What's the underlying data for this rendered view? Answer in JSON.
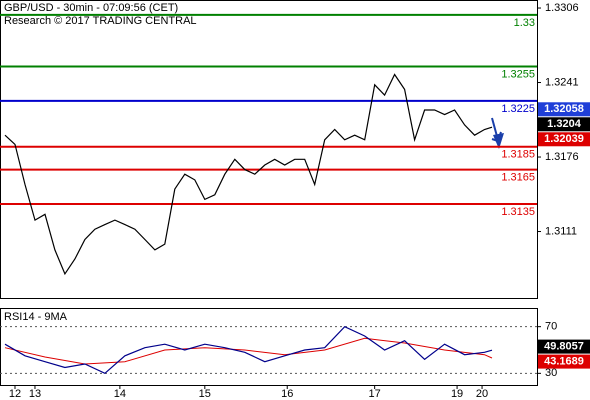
{
  "header": {
    "title": "GBP/USD - 30min - 07:09:56 (CET)",
    "source": "Research © 2017 TRADING CENTRAL"
  },
  "chart_data": [
    {
      "type": "line",
      "color": "#000000",
      "x": [
        0,
        4,
        8,
        12,
        16,
        20,
        24,
        28,
        32,
        36,
        40,
        44,
        48,
        52,
        56,
        60,
        64,
        68,
        72,
        76,
        80,
        84,
        88,
        92,
        96,
        100,
        104,
        108,
        112,
        116,
        120,
        124,
        128,
        132,
        136,
        140,
        144,
        148,
        152,
        156,
        160,
        164,
        168,
        172,
        176,
        180,
        184,
        188,
        192,
        195
      ],
      "values": [
        1.3195,
        1.3187,
        1.3152,
        1.3121,
        1.3126,
        1.3095,
        1.3074,
        1.3087,
        1.3104,
        1.3113,
        1.3117,
        1.3121,
        1.3117,
        1.3113,
        1.3104,
        1.3095,
        1.31,
        1.3148,
        1.3161,
        1.3156,
        1.3139,
        1.3143,
        1.3161,
        1.3174,
        1.3165,
        1.3161,
        1.3169,
        1.3174,
        1.3169,
        1.3174,
        1.3174,
        1.3152,
        1.3191,
        1.32,
        1.3191,
        1.3195,
        1.3191,
        1.3239,
        1.323,
        1.3248,
        1.3235,
        1.3191,
        1.3217,
        1.3217,
        1.3213,
        1.3217,
        1.3204,
        1.3195,
        1.32,
        1.3202
      ],
      "xlim": [
        -2,
        213
      ],
      "xticks": [
        {
          "value": 4,
          "label": "12"
        },
        {
          "value": 12,
          "label": "13"
        },
        {
          "value": 46,
          "label": "14"
        },
        {
          "value": 80,
          "label": "15"
        },
        {
          "value": 113,
          "label": "16"
        },
        {
          "value": 148,
          "label": "17"
        },
        {
          "value": 181,
          "label": "19"
        },
        {
          "value": 191,
          "label": "20"
        }
      ],
      "ylim": [
        1.3053,
        1.3313
      ],
      "yticks": [
        1.3111,
        1.3176,
        1.3241,
        1.3306
      ],
      "levels": [
        {
          "value": 1.33,
          "color": "#008000"
        },
        {
          "value": 1.3255,
          "color": "#008000"
        },
        {
          "value": 1.3225,
          "color": "#0000cc"
        },
        {
          "value": 1.3185,
          "color": "#dd0000"
        },
        {
          "value": 1.3165,
          "color": "#dd0000"
        },
        {
          "value": 1.3135,
          "color": "#dd0000"
        }
      ],
      "price_tags": [
        {
          "value": 1.32058,
          "color": "#1f3fd8"
        },
        {
          "value": 1.3204,
          "color": "#000000"
        },
        {
          "value": 1.32039,
          "color": "#dd0000"
        }
      ]
    },
    {
      "type": "line",
      "title": "RSI14 - 9MA",
      "color": "#00008b",
      "x": [
        0,
        8,
        16,
        24,
        32,
        40,
        48,
        56,
        64,
        72,
        80,
        88,
        96,
        104,
        112,
        120,
        128,
        136,
        144,
        152,
        160,
        168,
        176,
        184,
        192,
        195
      ],
      "values": [
        55,
        45,
        40,
        35,
        38,
        30,
        45,
        52,
        55,
        50,
        55,
        52,
        48,
        40,
        45,
        50,
        52,
        70,
        62,
        50,
        58,
        42,
        55,
        46,
        48,
        49.8057
      ],
      "ma": {
        "color": "#dd0000",
        "x": [
          0,
          16,
          32,
          48,
          64,
          80,
          96,
          112,
          128,
          144,
          160,
          176,
          192,
          195
        ],
        "values": [
          52,
          44,
          38,
          40,
          50,
          52,
          50,
          46,
          50,
          60,
          56,
          50,
          46,
          43.1689
        ]
      },
      "ylim": [
        20,
        86
      ],
      "yticks": [
        30,
        70
      ],
      "price_tags": [
        {
          "value": 49.8057,
          "color": "#000000"
        },
        {
          "value": 43.1689,
          "color": "#dd0000"
        }
      ]
    }
  ]
}
